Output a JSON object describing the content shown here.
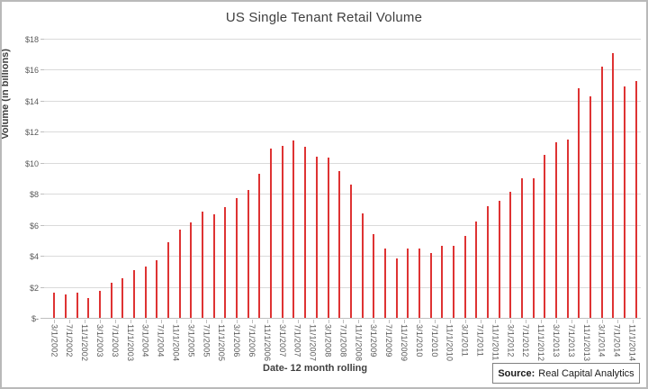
{
  "source_note": {
    "label": "Source:",
    "text": "Real Capital Analytics"
  },
  "chart_data": {
    "type": "bar",
    "title": "US Single Tenant Retail Volume",
    "xlabel": "Date- 12 month rolling",
    "ylabel": "Volume (in billions)",
    "ylim": [
      0,
      18
    ],
    "grid": true,
    "legend": "none",
    "bar_color": "#de3333",
    "y_tick_labels": [
      "$-",
      "$2",
      "$4",
      "$6",
      "$8",
      "$10",
      "$12",
      "$14",
      "$16",
      "$18"
    ],
    "x_tick_labels": [
      "3/1/2002",
      "7/1/2002",
      "11/1/2002",
      "3/1/2003",
      "7/1/2003",
      "11/1/2003",
      "3/1/2004",
      "7/1/2004",
      "11/1/2004",
      "3/1/2005",
      "7/1/2005",
      "11/1/2005",
      "3/1/2006",
      "7/1/2006",
      "11/1/2006",
      "3/1/2007",
      "7/1/2007",
      "11/1/2007",
      "3/1/2008",
      "7/1/2008",
      "11/1/2008",
      "3/1/2009",
      "7/1/2009",
      "11/1/2009",
      "3/1/2010",
      "7/1/2010",
      "11/1/2010",
      "3/1/2011",
      "7/1/2011",
      "11/1/2011",
      "3/1/2012",
      "7/1/2012",
      "11/1/2012",
      "3/1/2013",
      "7/1/2013",
      "11/1/2013",
      "3/1/2014",
      "7/1/2014",
      "11/1/2014"
    ],
    "series": [
      {
        "name": "US Single Tenant Retail Volume",
        "points": [
          {
            "date": "3/1/2002",
            "value": 1.65
          },
          {
            "date": "6/1/2002",
            "value": 1.5
          },
          {
            "date": "9/1/2002",
            "value": 1.65
          },
          {
            "date": "12/1/2002",
            "value": 1.25
          },
          {
            "date": "3/1/2003",
            "value": 1.75
          },
          {
            "date": "6/1/2003",
            "value": 2.25
          },
          {
            "date": "9/1/2003",
            "value": 2.55
          },
          {
            "date": "12/1/2003",
            "value": 3.05
          },
          {
            "date": "3/1/2004",
            "value": 3.3
          },
          {
            "date": "6/1/2004",
            "value": 3.7
          },
          {
            "date": "9/1/2004",
            "value": 4.9
          },
          {
            "date": "12/1/2004",
            "value": 5.7
          },
          {
            "date": "3/1/2005",
            "value": 6.15
          },
          {
            "date": "6/1/2005",
            "value": 6.85
          },
          {
            "date": "9/1/2005",
            "value": 6.65
          },
          {
            "date": "12/1/2005",
            "value": 7.15
          },
          {
            "date": "3/1/2006",
            "value": 7.7
          },
          {
            "date": "6/1/2006",
            "value": 8.25
          },
          {
            "date": "9/1/2006",
            "value": 9.3
          },
          {
            "date": "12/1/2006",
            "value": 10.9
          },
          {
            "date": "3/1/2007",
            "value": 11.1
          },
          {
            "date": "6/1/2007",
            "value": 11.45
          },
          {
            "date": "9/1/2007",
            "value": 11.05
          },
          {
            "date": "12/1/2007",
            "value": 10.4
          },
          {
            "date": "3/1/2008",
            "value": 10.35
          },
          {
            "date": "6/1/2008",
            "value": 9.45
          },
          {
            "date": "9/1/2008",
            "value": 8.6
          },
          {
            "date": "12/1/2008",
            "value": 6.75
          },
          {
            "date": "3/1/2009",
            "value": 5.4
          },
          {
            "date": "6/1/2009",
            "value": 4.5
          },
          {
            "date": "9/1/2009",
            "value": 3.85
          },
          {
            "date": "12/1/2009",
            "value": 4.5
          },
          {
            "date": "3/1/2010",
            "value": 4.5
          },
          {
            "date": "6/1/2010",
            "value": 4.2
          },
          {
            "date": "9/1/2010",
            "value": 4.65
          },
          {
            "date": "12/1/2010",
            "value": 4.65
          },
          {
            "date": "3/1/2011",
            "value": 5.3
          },
          {
            "date": "6/1/2011",
            "value": 6.2
          },
          {
            "date": "9/1/2011",
            "value": 7.2
          },
          {
            "date": "12/1/2011",
            "value": 7.55
          },
          {
            "date": "3/1/2012",
            "value": 8.15
          },
          {
            "date": "6/1/2012",
            "value": 9.0
          },
          {
            "date": "9/1/2012",
            "value": 9.0
          },
          {
            "date": "12/1/2012",
            "value": 10.5
          },
          {
            "date": "3/1/2013",
            "value": 11.35
          },
          {
            "date": "6/1/2013",
            "value": 11.5
          },
          {
            "date": "9/1/2013",
            "value": 14.8
          },
          {
            "date": "12/1/2013",
            "value": 14.3
          },
          {
            "date": "3/1/2014",
            "value": 16.2
          },
          {
            "date": "6/1/2014",
            "value": 17.05
          },
          {
            "date": "9/1/2014",
            "value": 14.9
          },
          {
            "date": "12/1/2014",
            "value": 15.3
          }
        ]
      }
    ]
  }
}
